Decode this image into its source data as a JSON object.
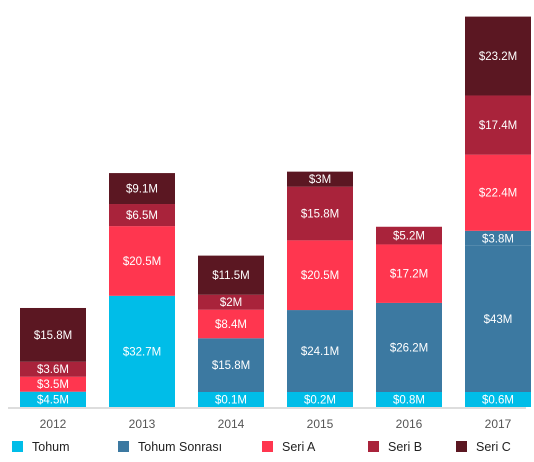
{
  "chart_data": {
    "type": "bar",
    "stacked": true,
    "categories": [
      "2012",
      "2013",
      "2014",
      "2015",
      "2016",
      "2017"
    ],
    "series": [
      {
        "name": "Tohum",
        "color": "#00bde8",
        "values": [
          4.5,
          32.7,
          0.1,
          0.2,
          0.8,
          0.6
        ],
        "labels": [
          "$4.5M",
          "$32.7M",
          "$0.1M",
          "$0.2M",
          "$0.8M",
          "$0.6M"
        ]
      },
      {
        "name": "Tohum Sonrası",
        "color": "#3c79a1",
        "values": [
          0,
          0,
          15.8,
          24.1,
          26.2,
          43
        ],
        "labels": [
          null,
          null,
          "$15.8M",
          "$24.1M",
          "$26.2M",
          "$43M"
        ]
      },
      {
        "name": "Seri A",
        "color": "#ff364f",
        "values": [
          3.5,
          20.5,
          8.4,
          20.5,
          17.2,
          22.4
        ],
        "labels": [
          "$3.5M",
          "$20.5M",
          "$8.4M",
          "$20.5M",
          "$17.2M",
          "$22.4M"
        ]
      },
      {
        "name": "Seri B",
        "color": "#a9233b",
        "values": [
          3.6,
          6.5,
          2,
          15.8,
          5.2,
          17.4
        ],
        "labels": [
          "$3.6M",
          "$6.5M",
          "$2M",
          "$15.8M",
          "$5.2M",
          "$17.4M"
        ]
      },
      {
        "name": "Seri C",
        "color": "#5b1722",
        "values": [
          15.8,
          9.1,
          11.5,
          3,
          0,
          23.2
        ],
        "labels": [
          "$15.8M",
          "$9.1M",
          "$11.5M",
          "$3M",
          null,
          "$23.2M"
        ]
      }
    ],
    "extra_segments": [
      {
        "category": "2017",
        "color": "#3c79a1",
        "value": 3.8,
        "label": "$3.8M",
        "insert_after": "Tohum Sonrası"
      }
    ],
    "legend_position": "bottom",
    "grid": false
  }
}
